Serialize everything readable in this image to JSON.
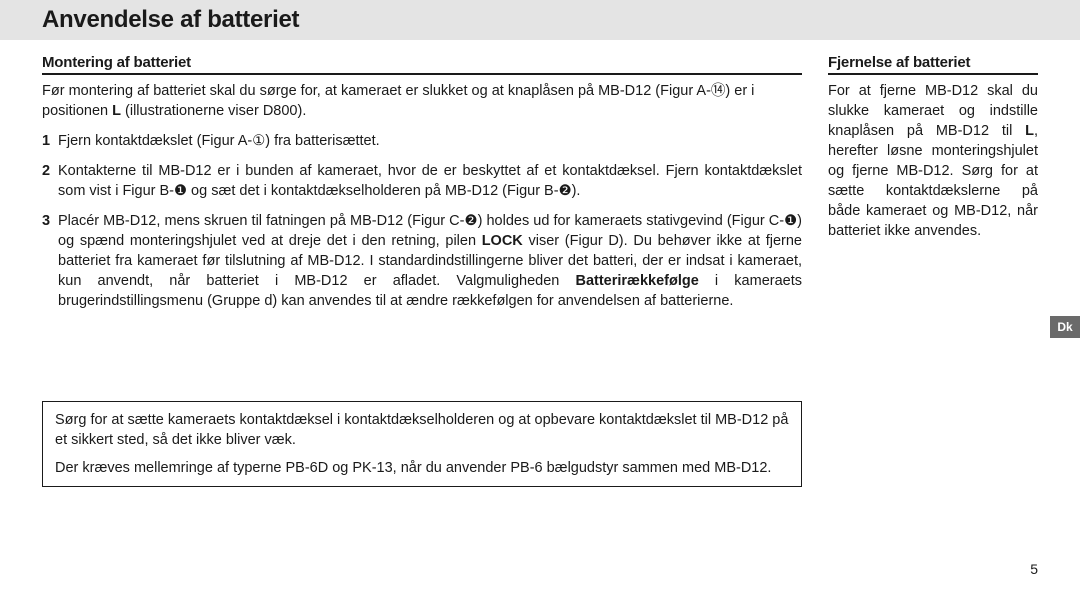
{
  "title": "Anvendelse af batteriet",
  "left": {
    "subhead": "Montering af batteriet",
    "intro_a": "Før montering af batteriet skal du sørge for, at kameraet er slukket og at knaplåsen på MB-D12 (Figur A-",
    "intro_glyph": "⑭",
    "intro_b": ") er i positionen ",
    "intro_bold": "L",
    "intro_c": " (illustrationerne viser D800).",
    "step1_a": "Fjern kontaktdækslet (Figur A-",
    "step1_glyph": "①",
    "step1_b": ") fra batterisættet.",
    "step2_a": "Kontakterne til MB-D12 er i bunden af kameraet, hvor de er beskyttet af et kontaktdæksel. Fjern kontaktdækslet som vist i Figur B-",
    "step2_g1": "❶",
    "step2_b": " og sæt det i kontaktdækselholderen på MB-D12 (Figur B-",
    "step2_g2": "❷",
    "step2_c": ").",
    "step3_a": "Placér MB-D12, mens skruen til fatningen på MB-D12 (Figur C-",
    "step3_g1": "❷",
    "step3_b": ") holdes ud for kameraets stativgevind (Figur C-",
    "step3_g2": "❶",
    "step3_c": ") og spænd monteringshjulet ved at dreje det i den retning, pilen ",
    "step3_lock": "LOCK",
    "step3_d": " viser (Figur D). Du behøver ikke at fjerne batteriet fra kameraet før tilslutning af MB-D12. I standardindstillingerne bliver det batteri, der er indsat i kameraet, kun anvendt, når batteriet i MB-D12 er afladet. Valgmuligheden ",
    "step3_bold2": "Batterirækkefølge",
    "step3_e": " i kameraets brugerindstillingsmenu (Gruppe d) kan anvendes til at ændre rækkefølgen for anvendelsen af batterierne."
  },
  "right": {
    "subhead": "Fjernelse af batteriet",
    "body_a": "For at fjerne MB-D12 skal du slukke kameraet og indstille knaplåsen på MB-D12 til ",
    "body_bold": "L",
    "body_b": ", herefter løsne monteringshjulet og fjerne MB-D12. Sørg for at sætte kontaktdækslerne på både kameraet og MB-D12, når batteriet ikke anvendes."
  },
  "tab": "Dk",
  "note": {
    "p1": "Sørg for at sætte kameraets kontaktdæksel i kontaktdækselholderen og at opbevare kontaktdækslet til MB-D12 på et sikkert sted, så det ikke bliver væk.",
    "p2": "Der kræves mellemringe af typerne PB-6D og PK-13, når du anvender PB-6 bælgudstyr sammen med MB-D12."
  },
  "page_num": "5"
}
